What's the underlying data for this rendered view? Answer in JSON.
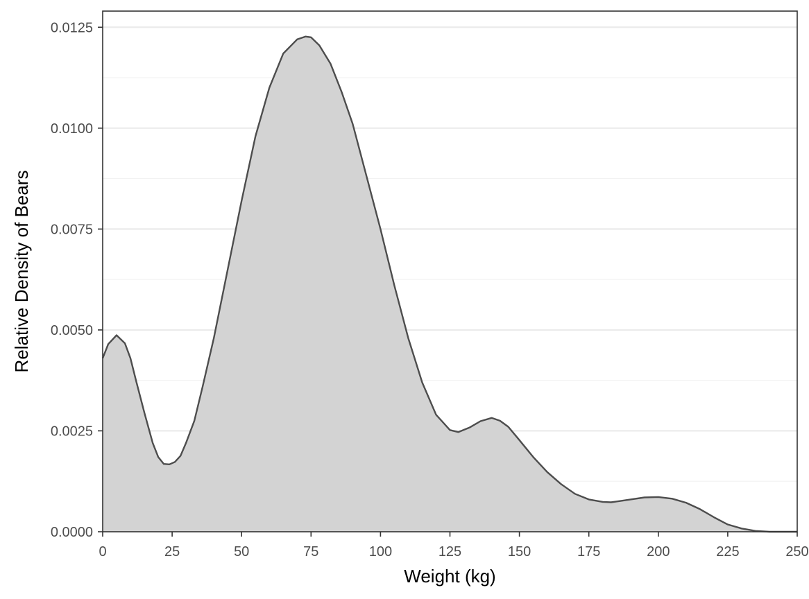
{
  "chart_data": {
    "type": "area",
    "title": "",
    "xlabel": "Weight (kg)",
    "ylabel": "Relative Density of Bears",
    "xlim": [
      0,
      250
    ],
    "ylim": [
      0,
      0.0129
    ],
    "x_ticks": [
      "0",
      "25",
      "50",
      "75",
      "100",
      "125",
      "150",
      "175",
      "200",
      "225",
      "250"
    ],
    "y_ticks": [
      "0.0000",
      "0.0025",
      "0.0050",
      "0.0075",
      "0.0100",
      "0.0125"
    ],
    "grid": true,
    "legend": "none",
    "fill_color": "#d3d3d3",
    "line_color": "#4d4d4d",
    "series": [
      {
        "x": [
          0,
          2,
          5,
          8,
          10,
          12,
          15,
          18,
          20,
          22,
          24,
          26,
          28,
          30,
          33,
          36,
          40,
          45,
          50,
          55,
          60,
          65,
          70,
          73,
          75,
          78,
          82,
          86,
          90,
          95,
          100,
          105,
          110,
          115,
          120,
          125,
          128,
          132,
          136,
          140,
          143,
          146,
          150,
          155,
          160,
          165,
          170,
          175,
          180,
          183,
          186,
          190,
          195,
          200,
          205,
          210,
          215,
          220,
          225,
          230,
          235,
          240,
          245,
          250
        ],
        "y": [
          0.0043,
          0.00465,
          0.00487,
          0.00467,
          0.0043,
          0.00375,
          0.00295,
          0.0022,
          0.00185,
          0.00168,
          0.00167,
          0.00173,
          0.00188,
          0.0022,
          0.00275,
          0.0036,
          0.0048,
          0.0065,
          0.0082,
          0.0098,
          0.011,
          0.01185,
          0.0122,
          0.01227,
          0.01225,
          0.01205,
          0.0116,
          0.0109,
          0.0101,
          0.0088,
          0.0075,
          0.0061,
          0.0048,
          0.0037,
          0.0029,
          0.00252,
          0.00247,
          0.00258,
          0.00274,
          0.00282,
          0.00275,
          0.0026,
          0.00227,
          0.00185,
          0.00148,
          0.00118,
          0.00094,
          0.0008,
          0.00074,
          0.00073,
          0.00076,
          0.0008,
          0.00085,
          0.00086,
          0.00082,
          0.00072,
          0.00056,
          0.00036,
          0.00018,
          8e-05,
          2e-05,
          0.0,
          0.0,
          0.0
        ]
      }
    ]
  }
}
